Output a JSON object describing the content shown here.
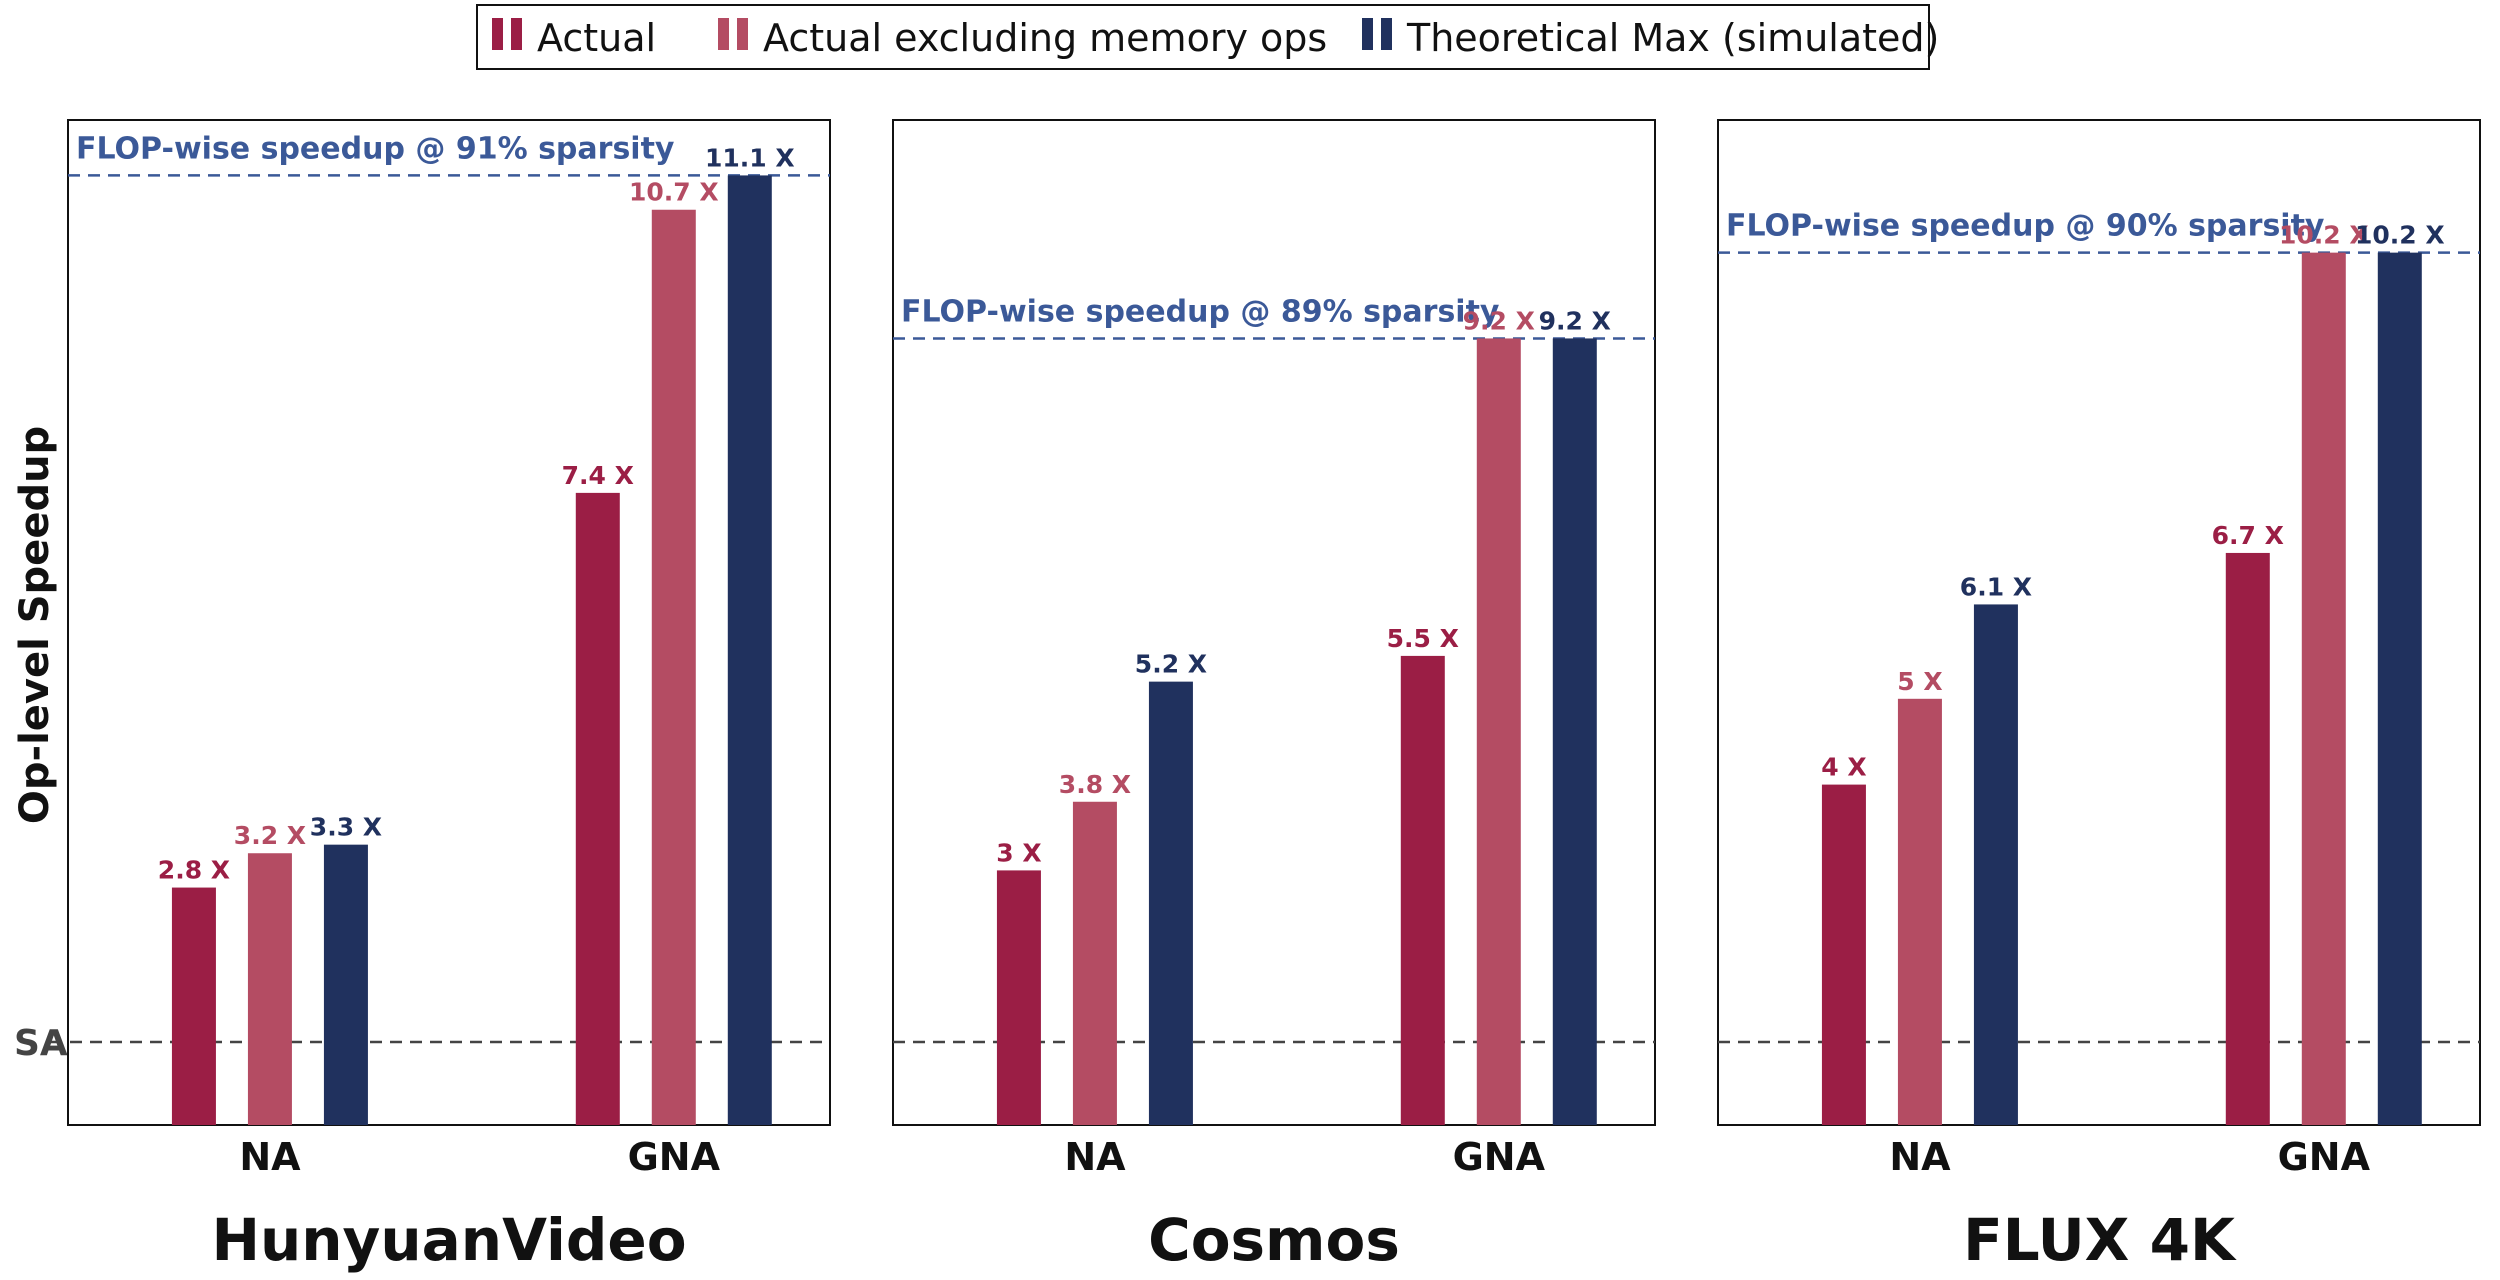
{
  "chart_data": {
    "type": "bar",
    "ylabel": "Op-level Speedup",
    "baseline_label": "SA",
    "baseline_value": 1,
    "ylim": [
      0,
      12
    ],
    "value_suffix": " X",
    "legend": {
      "placement": "top-center",
      "entries": [
        "Actual",
        "Actual excluding memory ops",
        "Theoretical Max (simulated)"
      ]
    },
    "series_colors": [
      "#9b1e45",
      "#b44c63",
      "#20315e"
    ],
    "reference_line_color": "#3b5998",
    "baseline_line_color": "#444444",
    "panels": [
      {
        "title": "HunyuanVideo",
        "categories": [
          "NA",
          "GNA"
        ],
        "series": [
          {
            "name": "Actual",
            "values": [
              2.8,
              7.4
            ],
            "labels": [
              "2.8",
              "7.4"
            ]
          },
          {
            "name": "Actual excluding memory ops",
            "values": [
              3.2,
              10.7
            ],
            "labels": [
              "3.2",
              "10.7"
            ]
          },
          {
            "name": "Theoretical Max (simulated)",
            "values": [
              3.3,
              11.1
            ],
            "labels": [
              "3.3",
              "11.1"
            ]
          }
        ],
        "reference": {
          "value": 11.1,
          "label": "FLOP-wise speedup @ 91% sparsity"
        }
      },
      {
        "title": "Cosmos",
        "categories": [
          "NA",
          "GNA"
        ],
        "series": [
          {
            "name": "Actual",
            "values": [
              3,
              5.5
            ],
            "labels": [
              "3",
              "5.5"
            ]
          },
          {
            "name": "Actual excluding memory ops",
            "values": [
              3.8,
              9.2
            ],
            "labels": [
              "3.8",
              "9.2"
            ]
          },
          {
            "name": "Theoretical Max (simulated)",
            "values": [
              5.2,
              9.2
            ],
            "labels": [
              "5.2",
              "9.2"
            ]
          }
        ],
        "reference": {
          "value": 9.2,
          "label": "FLOP-wise speedup @ 89% sparsity"
        }
      },
      {
        "title": "FLUX 4K",
        "categories": [
          "NA",
          "GNA"
        ],
        "series": [
          {
            "name": "Actual",
            "values": [
              4,
              6.7
            ],
            "labels": [
              "4",
              "6.7"
            ]
          },
          {
            "name": "Actual excluding memory ops",
            "values": [
              5,
              10.2
            ],
            "labels": [
              "5",
              "10.2"
            ]
          },
          {
            "name": "Theoretical Max (simulated)",
            "values": [
              6.1,
              10.2
            ],
            "labels": [
              "6.1",
              "10.2"
            ]
          }
        ],
        "reference": {
          "value": 10.2,
          "label": "FLOP-wise speedup @ 90% sparsity"
        }
      }
    ]
  }
}
